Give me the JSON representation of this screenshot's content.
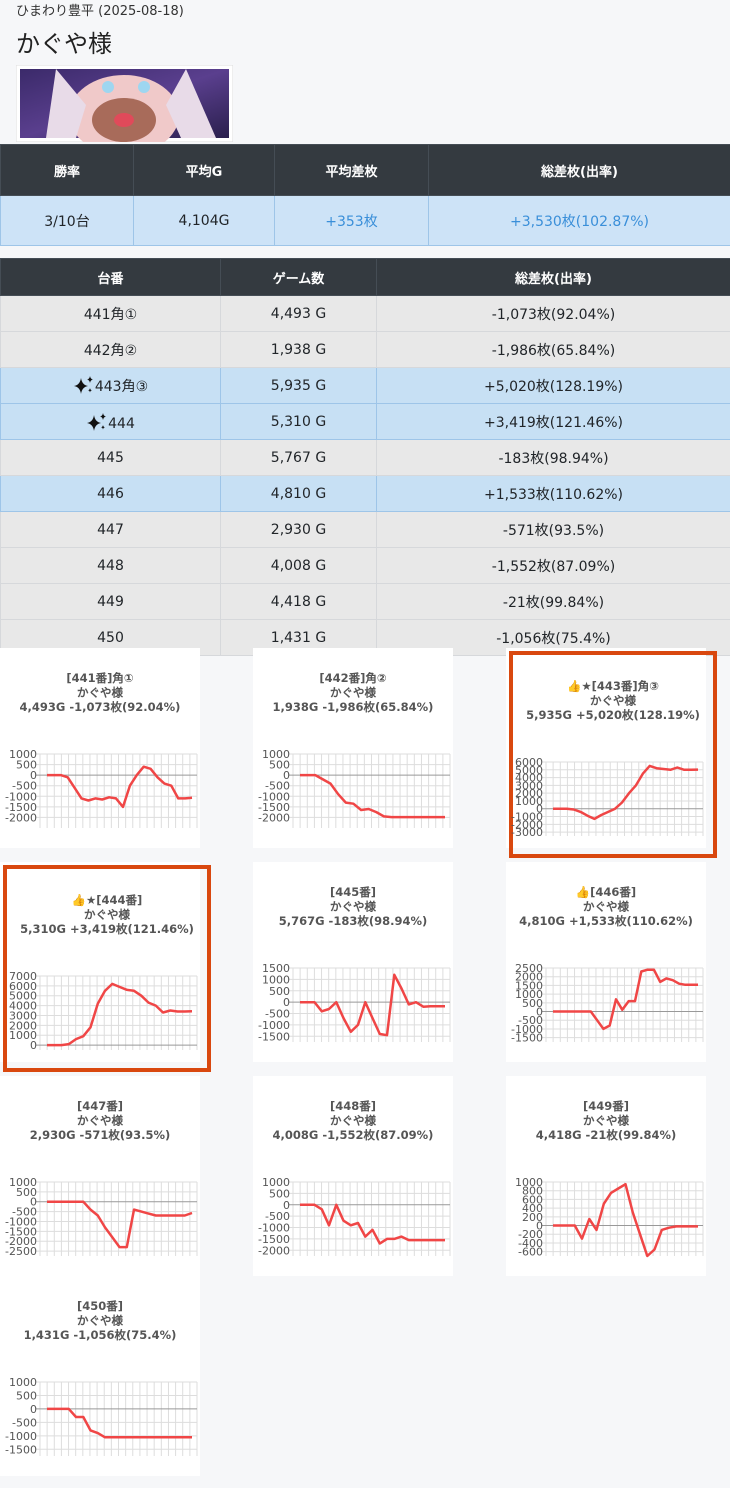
{
  "header": {
    "store": "ひまわり豊平 (2025-08-18)",
    "title": "かぐや様"
  },
  "summary": {
    "headers": [
      "勝率",
      "平均G",
      "平均差枚",
      "総差枚(出率)"
    ],
    "row": [
      "3/10台",
      "4,104G",
      "+353枚",
      "+3,530枚(102.87%)"
    ],
    "link_columns": [
      2,
      3
    ]
  },
  "table": {
    "headers": [
      "台番",
      "ゲーム数",
      "総差枚(出率)"
    ],
    "rows": [
      {
        "cells": [
          "441角①",
          "4,493 G",
          "-1,073枚(92.04%)"
        ],
        "highlight": false,
        "sparkle": false
      },
      {
        "cells": [
          "442角②",
          "1,938 G",
          "-1,986枚(65.84%)"
        ],
        "highlight": false,
        "sparkle": false
      },
      {
        "cells": [
          "443角③",
          "5,935 G",
          "+5,020枚(128.19%)"
        ],
        "highlight": true,
        "sparkle": true
      },
      {
        "cells": [
          "444",
          "5,310 G",
          "+3,419枚(121.46%)"
        ],
        "highlight": true,
        "sparkle": true
      },
      {
        "cells": [
          "445",
          "5,767 G",
          "-183枚(98.94%)"
        ],
        "highlight": false,
        "sparkle": false
      },
      {
        "cells": [
          "446",
          "4,810 G",
          "+1,533枚(110.62%)"
        ],
        "highlight": true,
        "sparkle": false
      },
      {
        "cells": [
          "447",
          "2,930 G",
          "-571枚(93.5%)"
        ],
        "highlight": false,
        "sparkle": false
      },
      {
        "cells": [
          "448",
          "4,008 G",
          "-1,552枚(87.09%)"
        ],
        "highlight": false,
        "sparkle": false
      },
      {
        "cells": [
          "449",
          "4,418 G",
          "-21枚(99.84%)"
        ],
        "highlight": false,
        "sparkle": false
      },
      {
        "cells": [
          "450",
          "1,431 G",
          "-1,056枚(75.4%)"
        ],
        "highlight": false,
        "sparkle": false
      }
    ]
  },
  "chart_data": [
    {
      "type": "line",
      "title": "[441番]角①",
      "subtitle": "かぐや様",
      "summary": "4,493G -1,073枚(92.04%)",
      "color": "#f04646",
      "highlight": false,
      "ylim": [
        -2500,
        1000
      ],
      "yticks": [
        1000,
        500,
        0,
        -500,
        -1000,
        -1500,
        -2000
      ],
      "values": [
        0,
        0,
        0,
        -100,
        -600,
        -1100,
        -1200,
        -1100,
        -1150,
        -1050,
        -1100,
        -1500,
        -500,
        0,
        400,
        300,
        -100,
        -400,
        -500,
        -1100,
        -1100,
        -1073
      ]
    },
    {
      "type": "line",
      "title": "[442番]角②",
      "subtitle": "かぐや様",
      "summary": "1,938G -1,986枚(65.84%)",
      "color": "#f04646",
      "highlight": false,
      "ylim": [
        -2500,
        1000
      ],
      "yticks": [
        1000,
        500,
        0,
        -500,
        -1000,
        -1500,
        -2000
      ],
      "values": [
        0,
        0,
        0,
        -200,
        -400,
        -900,
        -1300,
        -1350,
        -1650,
        -1600,
        -1750,
        -1950,
        -1986,
        -1986,
        -1986,
        -1986,
        -1986,
        -1986,
        -1986,
        -1986
      ]
    },
    {
      "type": "line",
      "title": "👍★[443番]角③",
      "subtitle": "かぐや様",
      "summary": "5,935G +5,020枚(128.19%)",
      "color": "#f04646",
      "highlight": true,
      "ylim": [
        -3500,
        6000
      ],
      "yticks": [
        6000,
        5000,
        4000,
        3000,
        2000,
        1000,
        0,
        -1000,
        -2000,
        -3000
      ],
      "values": [
        0,
        0,
        0,
        -100,
        -400,
        -900,
        -1300,
        -800,
        -400,
        0,
        800,
        2000,
        3000,
        4500,
        5500,
        5200,
        5100,
        5000,
        5300,
        5000,
        5000,
        5020
      ]
    },
    {
      "type": "line",
      "title": "👍★[444番]",
      "subtitle": "かぐや様",
      "summary": "5,310G +3,419枚(121.46%)",
      "color": "#f04646",
      "highlight": true,
      "ylim": [
        -500,
        7000
      ],
      "yticks": [
        7000,
        6000,
        5000,
        4000,
        3000,
        2000,
        1000,
        0
      ],
      "values": [
        0,
        0,
        0,
        100,
        600,
        900,
        1800,
        4200,
        5500,
        6200,
        5900,
        5600,
        5500,
        5000,
        4300,
        4000,
        3300,
        3500,
        3400,
        3400,
        3419
      ]
    },
    {
      "type": "line",
      "title": "[445番]",
      "subtitle": "かぐや様",
      "summary": "5,767G -183枚(98.94%)",
      "color": "#f04646",
      "highlight": false,
      "ylim": [
        -1750,
        1500
      ],
      "yticks": [
        1500,
        1000,
        500,
        0,
        -500,
        -1000,
        -1500
      ],
      "values": [
        0,
        0,
        0,
        -400,
        -300,
        0,
        -700,
        -1300,
        -1000,
        0,
        -700,
        -1400,
        -1450,
        1200,
        600,
        -100,
        0,
        -200,
        -183,
        -183,
        -183
      ]
    },
    {
      "type": "line",
      "title": "👍[446番]",
      "subtitle": "かぐや様",
      "summary": "4,810G +1,533枚(110.62%)",
      "color": "#f04646",
      "highlight": false,
      "ylim": [
        -1750,
        2500
      ],
      "yticks": [
        2500,
        2000,
        1500,
        1000,
        500,
        0,
        -500,
        -1000,
        -1500
      ],
      "values": [
        0,
        0,
        0,
        0,
        0,
        0,
        0,
        -500,
        -1000,
        -800,
        700,
        100,
        600,
        600,
        2300,
        2400,
        2400,
        1700,
        1900,
        1800,
        1600,
        1533,
        1533,
        1533
      ]
    },
    {
      "type": "line",
      "title": "[447番]",
      "subtitle": "かぐや様",
      "summary": "2,930G -571枚(93.5%)",
      "color": "#f04646",
      "highlight": false,
      "ylim": [
        -2750,
        1000
      ],
      "yticks": [
        1000,
        500,
        0,
        -500,
        -1000,
        -1500,
        -2000,
        -2500
      ],
      "values": [
        0,
        0,
        0,
        0,
        0,
        0,
        -400,
        -700,
        -1300,
        -1800,
        -2300,
        -2300,
        -400,
        -500,
        -600,
        -700,
        -700,
        -700,
        -700,
        -700,
        -571
      ]
    },
    {
      "type": "line",
      "title": "[448番]",
      "subtitle": "かぐや様",
      "summary": "4,008G -1,552枚(87.09%)",
      "color": "#f04646",
      "highlight": false,
      "ylim": [
        -2250,
        1000
      ],
      "yticks": [
        1000,
        500,
        0,
        -500,
        -1000,
        -1500,
        -2000
      ],
      "values": [
        0,
        0,
        0,
        -200,
        -900,
        0,
        -700,
        -900,
        -800,
        -1400,
        -1100,
        -1700,
        -1500,
        -1500,
        -1400,
        -1552,
        -1552,
        -1552,
        -1552,
        -1552,
        -1552
      ]
    },
    {
      "type": "line",
      "title": "[449番]",
      "subtitle": "かぐや様",
      "summary": "4,418G -21枚(99.84%)",
      "color": "#f04646",
      "highlight": false,
      "ylim": [
        -700,
        1000
      ],
      "yticks": [
        1000,
        800,
        600,
        400,
        200,
        0,
        -200,
        -400,
        -600
      ],
      "values": [
        0,
        0,
        0,
        0,
        -300,
        150,
        -100,
        500,
        750,
        850,
        950,
        300,
        -200,
        -700,
        -550,
        -100,
        -50,
        -21,
        -21,
        -21,
        -21
      ]
    },
    {
      "type": "line",
      "title": "[450番]",
      "subtitle": "かぐや様",
      "summary": "1,431G -1,056枚(75.4%)",
      "color": "#f04646",
      "highlight": false,
      "ylim": [
        -1750,
        1000
      ],
      "yticks": [
        1000,
        500,
        0,
        -500,
        -1000,
        -1500
      ],
      "values": [
        0,
        0,
        0,
        0,
        -300,
        -300,
        -800,
        -900,
        -1056,
        -1056,
        -1056,
        -1056,
        -1056,
        -1056,
        -1056,
        -1056,
        -1056,
        -1056,
        -1056,
        -1056,
        -1056
      ]
    }
  ]
}
